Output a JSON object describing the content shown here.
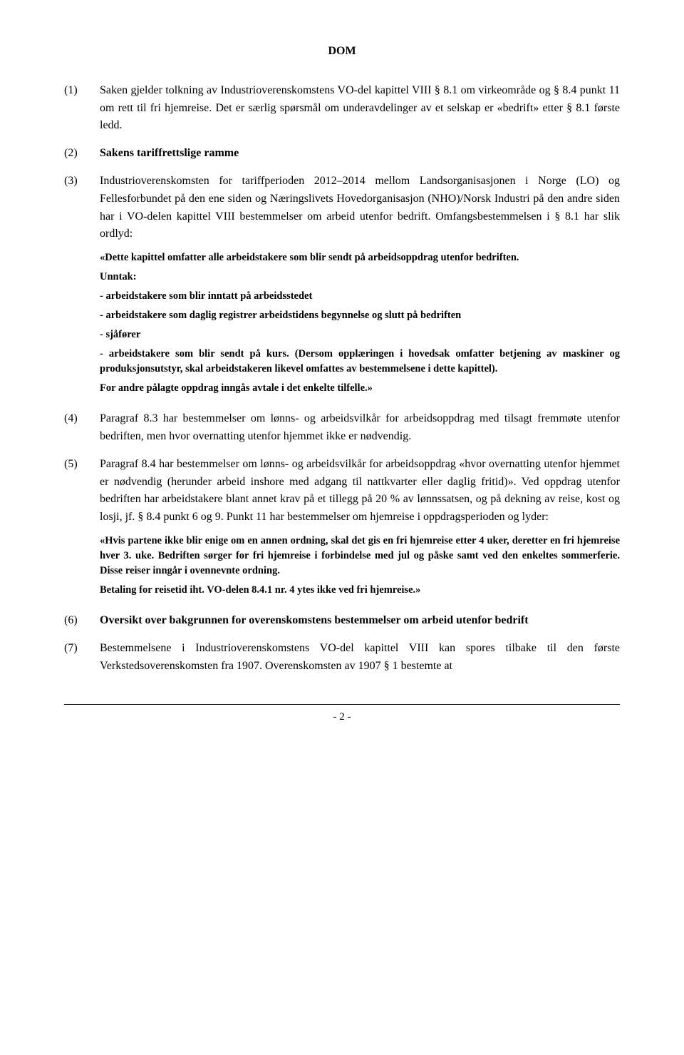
{
  "title": "DOM",
  "paragraphs": {
    "p1": {
      "num": "(1)",
      "text": "Saken gjelder tolkning av Industrioverenskomstens VO-del kapittel VIII § 8.1 om virkeområde og § 8.4 punkt 11 om rett til fri hjemreise. Det er særlig spørsmål om underavdelinger av et selskap er «bedrift» etter § 8.1 første ledd."
    },
    "p2": {
      "num": "(2)",
      "text": "Sakens tariffrettslige ramme"
    },
    "p3": {
      "num": "(3)",
      "text": "Industrioverenskomsten for tariffperioden 2012–2014 mellom Landsorganisasjonen i Norge (LO) og Fellesforbundet på den ene siden og Næringslivets Hovedorganisasjon (NHO)/Norsk Industri på den andre siden har i VO-delen kapittel VIII bestemmelser om arbeid utenfor bedrift. Omfangsbestemmelsen i § 8.1 har slik ordlyd:"
    },
    "quote1": {
      "l1": "«Dette kapittel omfatter alle arbeidstakere som blir sendt på arbeidsoppdrag utenfor bedriften.",
      "l2": "Unntak:",
      "l3": "- arbeidstakere som blir inntatt på arbeidsstedet",
      "l4": "- arbeidstakere som daglig registrer arbeidstidens begynnelse og slutt på bedriften",
      "l5": "- sjåfører",
      "l6": "- arbeidstakere som blir sendt på kurs. (Dersom opplæringen i hovedsak omfatter betjening av maskiner og produksjonsutstyr, skal arbeidstakeren likevel omfattes av bestemmelsene i dette kapittel).",
      "l7": "For andre pålagte oppdrag inngås avtale i det enkelte tilfelle.»"
    },
    "p4": {
      "num": "(4)",
      "text": "Paragraf 8.3 har bestemmelser om lønns- og arbeidsvilkår for arbeidsoppdrag med tilsagt fremmøte utenfor bedriften, men hvor overnatting utenfor hjemmet ikke er nødvendig."
    },
    "p5": {
      "num": "(5)",
      "text": "Paragraf 8.4 har bestemmelser om lønns- og arbeidsvilkår for arbeidsoppdrag «hvor overnatting utenfor hjemmet er nødvendig (herunder arbeid inshore med adgang til nattkvarter eller daglig fritid)». Ved oppdrag utenfor bedriften har arbeidstakere blant annet krav på et tillegg på 20 % av lønnssatsen, og på dekning av reise, kost og losji, jf. § 8.4 punkt 6 og 9. Punkt 11 har bestemmelser om hjemreise i oppdragsperioden og lyder:"
    },
    "quote2": {
      "l1": "«Hvis partene ikke blir enige om en annen ordning, skal det gis en fri hjemreise etter 4 uker, deretter en fri hjemreise hver 3. uke. Bedriften sørger for fri hjemreise i forbindelse med jul og påske samt ved den enkeltes sommerferie. Disse reiser inngår i ovennevnte ordning.",
      "l2": "Betaling for reisetid iht. VO-delen 8.4.1 nr. 4 ytes ikke ved fri hjemreise.»"
    },
    "p6": {
      "num": "(6)",
      "text": "Oversikt over bakgrunnen for overenskomstens bestemmelser om arbeid utenfor bedrift"
    },
    "p7": {
      "num": "(7)",
      "text": "Bestemmelsene i Industrioverenskomstens VO-del kapittel VIII kan spores tilbake til den første Verkstedsoverenskomsten fra 1907. Overenskomsten av 1907 § 1 bestemte at"
    }
  },
  "pageNumber": "- 2 -"
}
